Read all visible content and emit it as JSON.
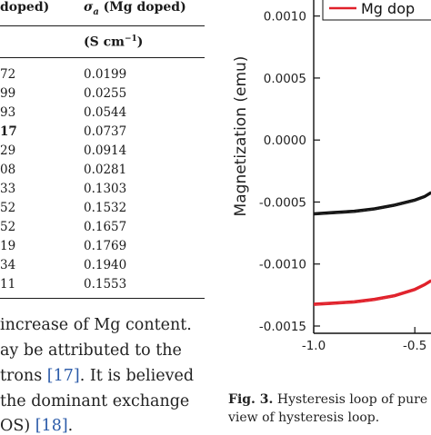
{
  "table": {
    "col1_header": "doped)",
    "col2_header": "σ",
    "col2_header_sub": "a",
    "col2_header_rest": " (Mg doped)",
    "unit_header": "(S cm",
    "unit_sup": "−1",
    "unit_close": ")",
    "rows": [
      {
        "a": "72",
        "b": "0.0199"
      },
      {
        "a": "99",
        "b": "0.0255"
      },
      {
        "a": "93",
        "b": "0.0544"
      },
      {
        "a": "17",
        "b": "0.0737"
      },
      {
        "a": "29",
        "b": "0.0914"
      },
      {
        "a": "08",
        "b": "0.0281"
      },
      {
        "a": "33",
        "b": "0.1303"
      },
      {
        "a": "52",
        "b": "0.1532"
      },
      {
        "a": "52",
        "b": "0.1657"
      },
      {
        "a": "19",
        "b": "0.1769"
      },
      {
        "a": "34",
        "b": "0.1940"
      },
      {
        "a": "11",
        "b": "0.1553"
      }
    ]
  },
  "body_text": {
    "line1": "increase of Mg content.",
    "line2": "ay be attributed to the",
    "line3_pre": "trons ",
    "line3_ref": "[17]",
    "line3_post": ". It is believed",
    "line4": "the dominant exchange",
    "line5_pre": "OS) ",
    "line5_ref": "[18]",
    "line5_post": "."
  },
  "caption": {
    "label": "Fig. 3.",
    "line1_rest": " Hysteresis loop of pure",
    "line2": "view of hysteresis loop."
  },
  "chart_data": {
    "type": "line",
    "ylabel": "Magnetization (emu)",
    "ylim": [
      -0.0015,
      0.0011
    ],
    "yticks": [
      "0.0010",
      "0.0005",
      "0.0000",
      "-0.0005",
      "-0.0010",
      "-0.0015"
    ],
    "xticks": [
      "-1.0",
      "-0.5"
    ],
    "grid": false,
    "legend": {
      "entries": [
        "Mg dop"
      ],
      "position": "top-right"
    },
    "series": [
      {
        "name": "Mg dop",
        "color": "#e0202a",
        "x": [
          -1.0,
          -0.9,
          -0.8,
          -0.7,
          -0.6,
          -0.5,
          -0.45,
          -0.42
        ],
        "y": [
          -0.00132,
          -0.00131,
          -0.0013,
          -0.00128,
          -0.00125,
          -0.0012,
          -0.00116,
          -0.00113
        ]
      },
      {
        "color": "#111111",
        "x": [
          -1.0,
          -0.9,
          -0.8,
          -0.7,
          -0.6,
          -0.5,
          -0.45,
          -0.42
        ],
        "y": [
          -0.00059,
          -0.00058,
          -0.00057,
          -0.00055,
          -0.00052,
          -0.00048,
          -0.00045,
          -0.00042
        ]
      }
    ]
  }
}
